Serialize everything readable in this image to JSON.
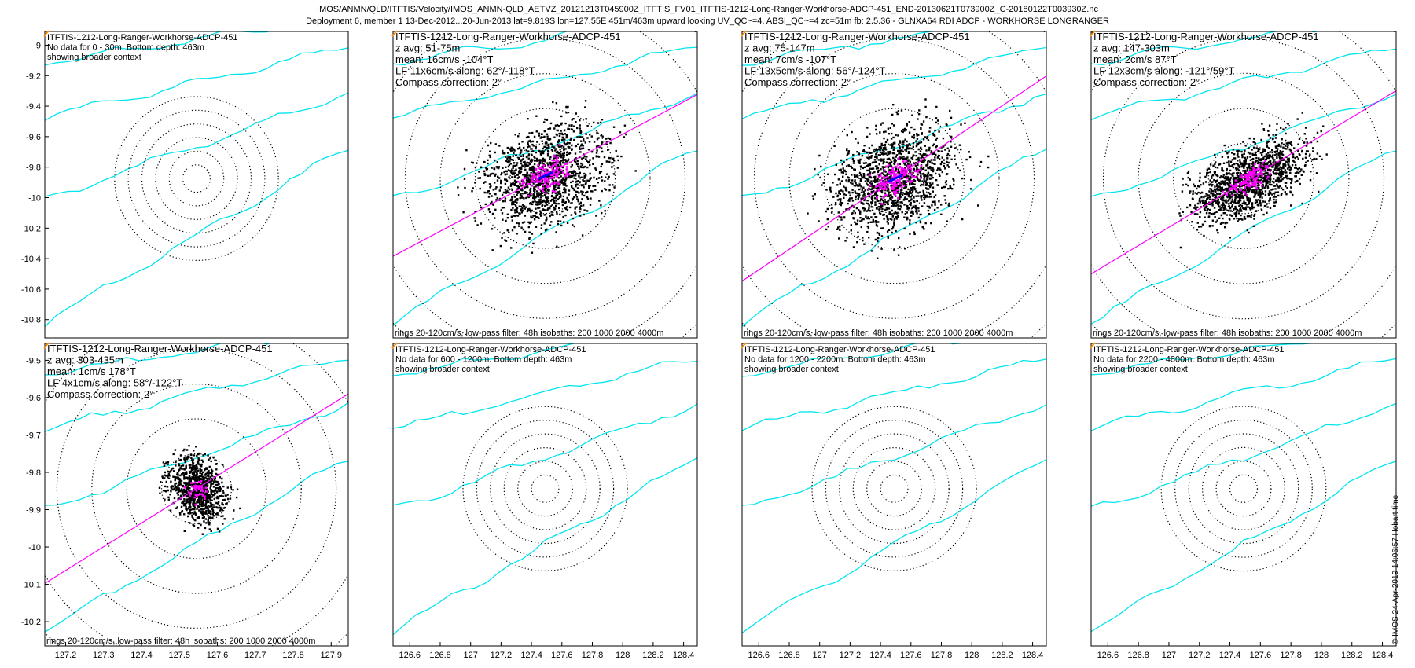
{
  "header": {
    "line1": "IMOS/ANMN/QLD/ITFTIS/Velocity/IMOS_ANMN-QLD_AETVZ_20121213T045900Z_ITFTIS_FV01_ITFTIS-1212-Long-Ranger-Workhorse-ADCP-451_END-20130621T073900Z_C-20180122T003930Z.nc",
    "line2": "Deployment 6, member 1 13-Dec-2012...20-Jun-2013 lat=9.819S lon=127.55E 451m/463m upward looking UV_QC~=4, ABSI_QC~=4 zc=51m fb: 2.5.36 - GLNXA64 RDI ADCP - WORKHORSE LONGRANGER"
  },
  "credit": "© IMOS 24-Apr-2019 14:06:57 Hobart time",
  "colors": {
    "isobath": "#00e5ee",
    "scatter": "#000000",
    "lowpass": "#ff00ff",
    "mean": "#0000ff",
    "axis": "#000000"
  },
  "chart_data": [
    {
      "type": "scatter",
      "panel": "row1-col1",
      "text_lines": [
        "ITFTIS-1212-Long-Ranger-Workhorse-ADCP-451",
        "No data for 0 - 30m. Bottom depth: 463m",
        "showing broader context"
      ],
      "footer": "",
      "xticks": [],
      "yticks": [
        "-9",
        "-9.2",
        "-9.4",
        "-9.6",
        "-9.8",
        "-10",
        "-10.2",
        "-10.4",
        "-10.6",
        "-10.8"
      ],
      "has_data": false
    },
    {
      "type": "scatter",
      "panel": "row1-col2",
      "text_lines": [
        "ITFTIS-1212-Long-Ranger-Workhorse-ADCP-451",
        "z avg: 51-75m",
        "mean: 16cm/s -104°T",
        "LF 11x6cm/s along: 62°/-118°T",
        "Compass correction: 2°"
      ],
      "footer": "rings 20-120cm/s, low-pass filter: 48h isobaths: 200 1000 2000 4000m",
      "xticks": [],
      "yticks": [],
      "has_data": true,
      "axis_angle_deg": 28,
      "cloud_size": "large"
    },
    {
      "type": "scatter",
      "panel": "row1-col3",
      "text_lines": [
        "ITFTIS-1212-Long-Ranger-Workhorse-ADCP-451",
        "z avg: 75-147m",
        "mean: 7cm/s -107°T",
        "LF 13x5cm/s along: 56°/-124°T",
        "Compass correction: 2°"
      ],
      "footer": "rings 20-120cm/s, low-pass filter: 48h isobaths: 200 1000 2000 4000m",
      "xticks": [],
      "yticks": [],
      "has_data": true,
      "axis_angle_deg": 34,
      "cloud_size": "large"
    },
    {
      "type": "scatter",
      "panel": "row1-col4",
      "text_lines": [
        "ITFTIS-1212-Long-Ranger-Workhorse-ADCP-451",
        "z avg: 147-303m",
        "mean: 2cm/s 87°T",
        "LF 12x3cm/s along: -121°/59°T",
        "Compass correction: 2°"
      ],
      "footer": "rings 20-120cm/s, low-pass filter: 48h isobaths: 200 1000 2000 4000m",
      "xticks": [],
      "yticks": [],
      "has_data": true,
      "axis_angle_deg": 31,
      "cloud_size": "medium"
    },
    {
      "type": "scatter",
      "panel": "row2-col1",
      "text_lines": [
        "ITFTIS-1212-Long-Ranger-Workhorse-ADCP-451",
        "z avg: 303-435m",
        "mean: 1cm/s 178°T",
        "LF 4x1cm/s along: 58°/-122°T",
        "Compass correction: 2°"
      ],
      "footer": "rings 20-120cm/s, low-pass filter: 48h isobaths: 200 1000 2000 4000m",
      "xticks": [
        "127.2",
        "127.3",
        "127.4",
        "127.5",
        "127.6",
        "127.7",
        "127.8",
        "127.9"
      ],
      "yticks": [
        "-9.5",
        "-9.6",
        "-9.7",
        "-9.8",
        "-9.9",
        "-10",
        "-10.1",
        "-10.2"
      ],
      "has_data": true,
      "axis_angle_deg": 32,
      "cloud_size": "small"
    },
    {
      "type": "scatter",
      "panel": "row2-col2",
      "text_lines": [
        "ITFTIS-1212-Long-Ranger-Workhorse-ADCP-451",
        "No data for 600 - 1200m. Bottom depth: 463m",
        "showing broader context"
      ],
      "footer": "",
      "xticks": [
        "126.6",
        "126.8",
        "127",
        "127.2",
        "127.4",
        "127.6",
        "127.8",
        "128",
        "128.2",
        "128.4"
      ],
      "yticks": [],
      "has_data": false
    },
    {
      "type": "scatter",
      "panel": "row2-col3",
      "text_lines": [
        "ITFTIS-1212-Long-Ranger-Workhorse-ADCP-451",
        "No data for 1200 - 2200m. Bottom depth: 463m",
        "showing broader context"
      ],
      "footer": "",
      "xticks": [
        "126.6",
        "126.8",
        "127",
        "127.2",
        "127.4",
        "127.6",
        "127.8",
        "128",
        "128.2",
        "128.4"
      ],
      "yticks": [],
      "has_data": false
    },
    {
      "type": "scatter",
      "panel": "row2-col4",
      "text_lines": [
        "ITFTIS-1212-Long-Ranger-Workhorse-ADCP-451",
        "No data for 2200 - 4800m. Bottom depth: 463m",
        "showing broader context"
      ],
      "footer": "",
      "xticks": [
        "126.6",
        "126.8",
        "127",
        "127.2",
        "127.4",
        "127.6",
        "127.8",
        "128",
        "128.2",
        "128.4"
      ],
      "yticks": [],
      "has_data": false
    }
  ]
}
